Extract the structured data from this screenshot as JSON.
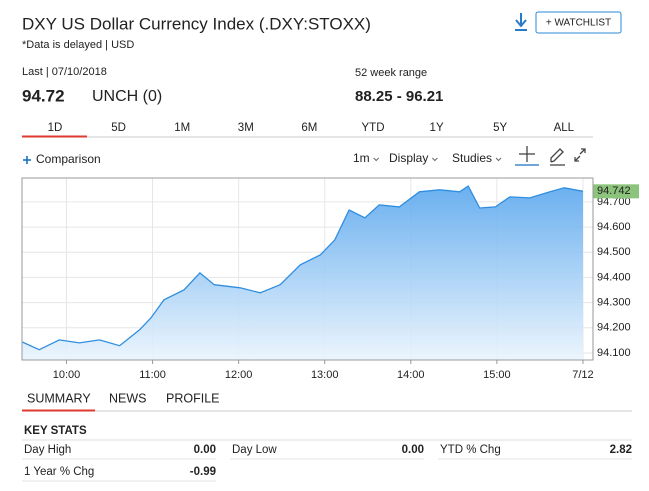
{
  "header": {
    "title": "DXY US Dollar Currency Index (.DXY:STOXX)",
    "note": "*Data is delayed | USD",
    "watchlist": "+ WATCHLIST"
  },
  "quote": {
    "last_label": "Last | 07/10/2018",
    "price": "94.72",
    "change": "UNCH (0)",
    "range_label": "52 week range",
    "range": "88.25 - 96.21"
  },
  "periods": [
    "1D",
    "5D",
    "1M",
    "3M",
    "6M",
    "YTD",
    "1Y",
    "5Y",
    "ALL"
  ],
  "toolbar": {
    "comparison": "Comparison",
    "interval": "1m",
    "display": "Display",
    "studies": "Studies"
  },
  "chart_data": {
    "type": "area",
    "color": "#2f8ee0",
    "x": [
      569,
      581,
      595,
      609,
      623,
      637,
      651,
      659,
      668,
      682,
      693,
      703,
      721,
      735,
      749,
      763,
      777,
      787,
      797,
      808,
      818,
      832,
      846,
      860,
      874,
      880,
      888,
      899,
      909,
      923,
      937,
      947,
      960
    ],
    "values": [
      94.144,
      94.113,
      94.152,
      94.14,
      94.152,
      94.129,
      94.192,
      94.24,
      94.311,
      94.351,
      94.418,
      94.371,
      94.359,
      94.339,
      94.371,
      94.45,
      94.49,
      94.549,
      94.668,
      94.637,
      94.688,
      94.68,
      94.74,
      94.748,
      94.74,
      94.763,
      94.676,
      94.68,
      94.72,
      94.716,
      94.74,
      94.756,
      94.742
    ],
    "xlim": [
      569,
      967
    ],
    "ylim": [
      94.072,
      94.795
    ],
    "xticks": [
      {
        "value": 600,
        "label": "10:00"
      },
      {
        "value": 660,
        "label": "11:00"
      },
      {
        "value": 720,
        "label": "12:00"
      },
      {
        "value": 780,
        "label": "13:00"
      },
      {
        "value": 840,
        "label": "14:00"
      },
      {
        "value": 900,
        "label": "15:00"
      },
      {
        "value": 960,
        "label": "7/12"
      }
    ],
    "yticks": [
      {
        "value": 94.1,
        "label": "94.100"
      },
      {
        "value": 94.2,
        "label": "94.200"
      },
      {
        "value": 94.3,
        "label": "94.300"
      },
      {
        "value": 94.4,
        "label": "94.400"
      },
      {
        "value": 94.5,
        "label": "94.500"
      },
      {
        "value": 94.6,
        "label": "94.600"
      },
      {
        "value": 94.7,
        "label": "94.700"
      }
    ],
    "grid": true
  },
  "tabs": [
    "SUMMARY",
    "NEWS",
    "PROFILE"
  ],
  "key_stats": {
    "title": "KEY STATS",
    "items": [
      {
        "label": "Day High",
        "value": "0.00"
      },
      {
        "label": "Day Low",
        "value": "0.00"
      },
      {
        "label": "YTD % Chg",
        "value": "2.82"
      },
      {
        "label": "1 Year % Chg",
        "value": "-0.99"
      }
    ]
  }
}
